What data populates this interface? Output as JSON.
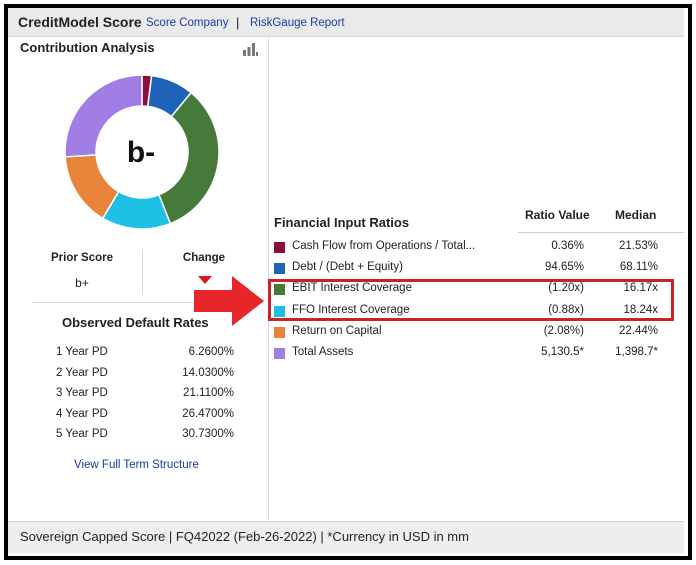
{
  "header": {
    "title": "CreditModel Score",
    "link_company": "Score Company",
    "separator": "|",
    "link_report": "RiskGauge Report"
  },
  "contribution": {
    "title": "Contribution Analysis",
    "icon": "bar-chart-icon",
    "grade": "b-",
    "segments": [
      {
        "color": "#8b0f3b",
        "fraction": 0.02
      },
      {
        "color": "#1f63b8",
        "fraction": 0.09
      },
      {
        "color": "#467a3a",
        "fraction": 0.33
      },
      {
        "color": "#1ec0e6",
        "fraction": 0.145
      },
      {
        "color": "#e8843a",
        "fraction": 0.155
      },
      {
        "color": "#a07ee6",
        "fraction": 0.26
      }
    ]
  },
  "scores": {
    "prior_label": "Prior Score",
    "prior_value": "b+",
    "change_label": "Change",
    "change_icon": "down-triangle-icon",
    "change_color": "#d91a1a"
  },
  "default_rates": {
    "title": "Observed Default Rates",
    "rows": [
      {
        "label": "1 Year PD",
        "value": "6.2600%"
      },
      {
        "label": "2 Year PD",
        "value": "14.0300%"
      },
      {
        "label": "3 Year PD",
        "value": "21.1100%"
      },
      {
        "label": "4 Year PD",
        "value": "26.4700%"
      },
      {
        "label": "5 Year PD",
        "value": "30.7300%"
      }
    ],
    "link": "View Full Term Structure"
  },
  "ratios": {
    "title": "Financial Input Ratios",
    "col_value": "Ratio Value",
    "col_median": "Median",
    "rows": [
      {
        "label": "Cash Flow from Operations / Total...",
        "value": "0.36%",
        "median": "21.53%",
        "color": "#8b0f3b"
      },
      {
        "label": "Debt / (Debt + Equity)",
        "value": "94.65%",
        "median": "68.11%",
        "color": "#1f63b8"
      },
      {
        "label": "EBIT Interest Coverage",
        "value": "(1.20x)",
        "median": "16.17x",
        "color": "#467a3a"
      },
      {
        "label": "FFO Interest Coverage",
        "value": "(0.88x)",
        "median": "18.24x",
        "color": "#1ec0e6"
      },
      {
        "label": "Return on Capital",
        "value": "(2.08%)",
        "median": "22.44%",
        "color": "#e8843a"
      },
      {
        "label": "Total Assets",
        "value": "5,130.5*",
        "median": "1,398.7*",
        "color": "#a07ee6"
      }
    ],
    "highlight_color": "#c9232a",
    "arrow_color": "#e6262a"
  },
  "footer": {
    "text": "Sovereign Capped Score | FQ42022 (Feb-26-2022) | *Currency in USD in mm"
  }
}
